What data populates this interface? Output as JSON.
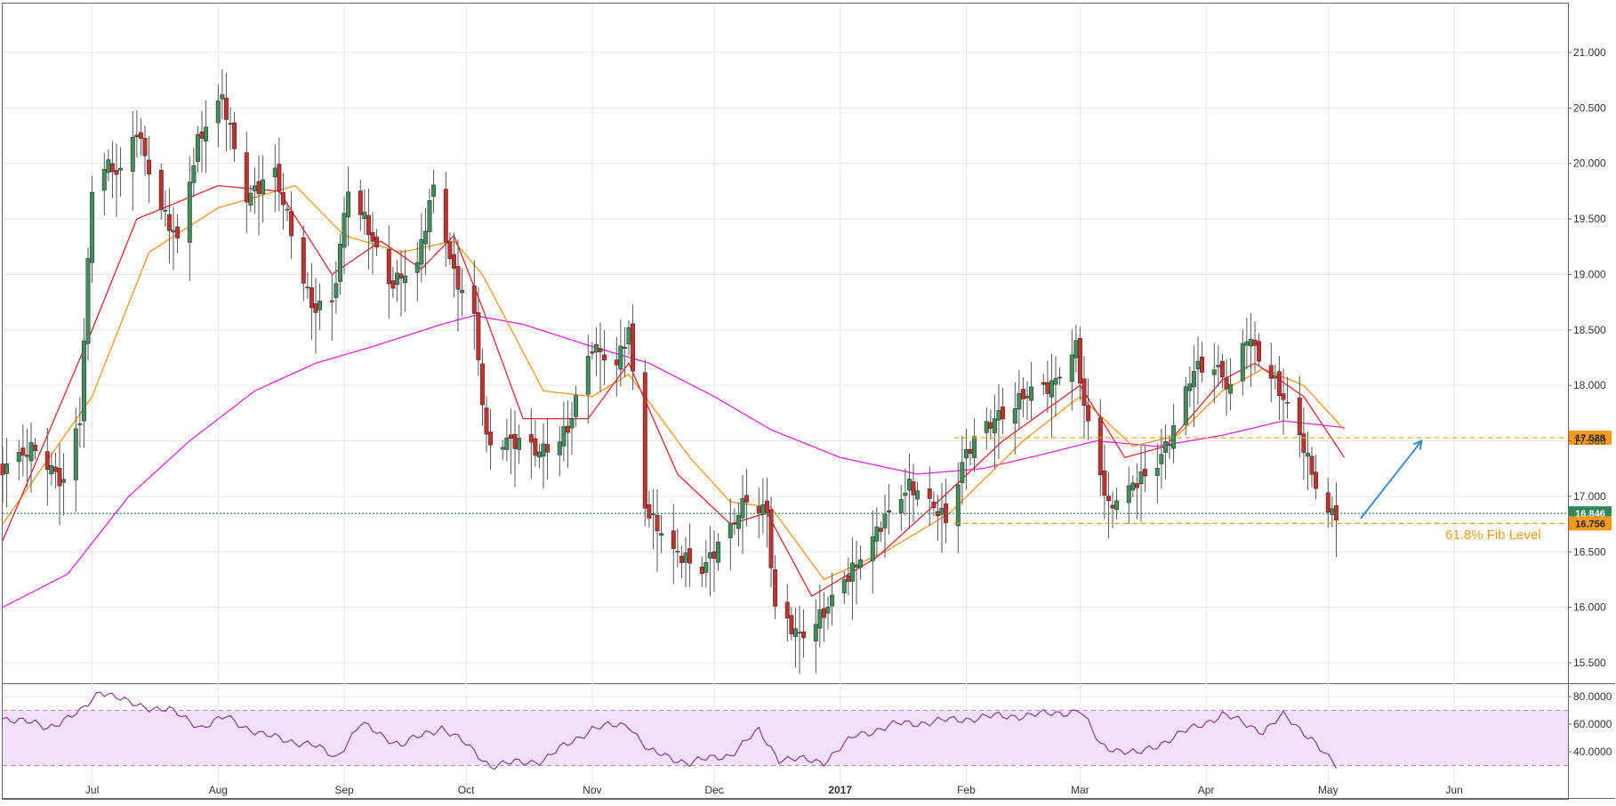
{
  "chart_data": [
    {
      "type": "candlestick",
      "title": "",
      "y_axis_side": "right",
      "ylim": [
        15.2,
        21.5
      ],
      "y_ticks": [
        "21.000",
        "20.500",
        "20.000",
        "19.500",
        "19.000",
        "18.500",
        "18.000",
        "17.500",
        "17.000",
        "16.500",
        "16.000",
        "15.500"
      ],
      "y_tick_values": [
        21.0,
        20.5,
        20.0,
        19.5,
        19.0,
        18.5,
        18.0,
        17.5,
        17.0,
        16.5,
        16.0,
        15.5
      ],
      "x_range": [
        "2016-06-09",
        "2017-06-29"
      ],
      "x_ticks": [
        {
          "label": "Jul",
          "date": "2016-07-01",
          "bold": false
        },
        {
          "label": "Aug",
          "date": "2016-08-01",
          "bold": false
        },
        {
          "label": "Sep",
          "date": "2016-09-01",
          "bold": false
        },
        {
          "label": "Oct",
          "date": "2016-10-01",
          "bold": false
        },
        {
          "label": "Nov",
          "date": "2016-11-01",
          "bold": false
        },
        {
          "label": "Dec",
          "date": "2016-12-01",
          "bold": false
        },
        {
          "label": "2017",
          "date": "2017-01-01",
          "bold": true
        },
        {
          "label": "Feb",
          "date": "2017-02-01",
          "bold": false
        },
        {
          "label": "Mar",
          "date": "2017-03-01",
          "bold": false
        },
        {
          "label": "Apr",
          "date": "2017-04-01",
          "bold": false
        },
        {
          "label": "May",
          "date": "2017-05-01",
          "bold": false
        },
        {
          "label": "Jun",
          "date": "2017-06-01",
          "bold": false
        }
      ],
      "grid": true,
      "price_anchors": [
        [
          "2016-06-09",
          17.25
        ],
        [
          "2016-06-17",
          17.45
        ],
        [
          "2016-06-24",
          17.1
        ],
        [
          "2016-06-28",
          17.7
        ],
        [
          "2016-07-01",
          19.8
        ],
        [
          "2016-07-04",
          20.0
        ],
        [
          "2016-07-08",
          19.9
        ],
        [
          "2016-07-12",
          20.3
        ],
        [
          "2016-07-18",
          19.6
        ],
        [
          "2016-07-22",
          19.3
        ],
        [
          "2016-07-27",
          20.2
        ],
        [
          "2016-08-02",
          20.6
        ],
        [
          "2016-08-08",
          19.7
        ],
        [
          "2016-08-15",
          19.9
        ],
        [
          "2016-08-19",
          19.4
        ],
        [
          "2016-08-24",
          18.7
        ],
        [
          "2016-08-29",
          18.7
        ],
        [
          "2016-09-02",
          19.8
        ],
        [
          "2016-09-06",
          19.5
        ],
        [
          "2016-09-12",
          18.9
        ],
        [
          "2016-09-19",
          19.1
        ],
        [
          "2016-09-23",
          19.8
        ],
        [
          "2016-09-28",
          19.0
        ],
        [
          "2016-10-03",
          18.6
        ],
        [
          "2016-10-06",
          17.5
        ],
        [
          "2016-10-12",
          17.5
        ],
        [
          "2016-10-19",
          17.4
        ],
        [
          "2016-10-26",
          17.6
        ],
        [
          "2016-11-01",
          18.35
        ],
        [
          "2016-11-07",
          18.2
        ],
        [
          "2016-11-10",
          18.5
        ],
        [
          "2016-11-14",
          16.9
        ],
        [
          "2016-11-21",
          16.5
        ],
        [
          "2016-11-28",
          16.35
        ],
        [
          "2016-12-05",
          16.7
        ],
        [
          "2016-12-09",
          17.0
        ],
        [
          "2016-12-14",
          16.85
        ],
        [
          "2016-12-16",
          15.95
        ],
        [
          "2016-12-22",
          15.75
        ],
        [
          "2016-12-28",
          15.95
        ],
        [
          "2017-01-05",
          16.4
        ],
        [
          "2017-01-12",
          16.8
        ],
        [
          "2017-01-18",
          17.1
        ],
        [
          "2017-01-27",
          16.8
        ],
        [
          "2017-02-01",
          17.4
        ],
        [
          "2017-02-08",
          17.7
        ],
        [
          "2017-02-15",
          17.9
        ],
        [
          "2017-02-22",
          18.0
        ],
        [
          "2017-02-28",
          18.35
        ],
        [
          "2017-03-02",
          17.8
        ],
        [
          "2017-03-08",
          16.9
        ],
        [
          "2017-03-14",
          17.1
        ],
        [
          "2017-03-20",
          17.3
        ],
        [
          "2017-03-24",
          17.6
        ],
        [
          "2017-03-29",
          18.15
        ],
        [
          "2017-04-03",
          18.2
        ],
        [
          "2017-04-07",
          17.95
        ],
        [
          "2017-04-11",
          18.45
        ],
        [
          "2017-04-17",
          18.1
        ],
        [
          "2017-04-21",
          17.8
        ],
        [
          "2017-04-25",
          17.45
        ],
        [
          "2017-04-28",
          17.1
        ],
        [
          "2017-05-01",
          16.85
        ],
        [
          "2017-05-03",
          16.846
        ]
      ],
      "ema_fast": {
        "color": "#e8242e",
        "anchors": [
          [
            "2016-06-09",
            16.6
          ],
          [
            "2016-07-01",
            18.5
          ],
          [
            "2016-07-12",
            19.5
          ],
          [
            "2016-08-01",
            19.8
          ],
          [
            "2016-08-16",
            19.75
          ],
          [
            "2016-08-29",
            19.0
          ],
          [
            "2016-09-10",
            19.3
          ],
          [
            "2016-09-20",
            19.05
          ],
          [
            "2016-09-28",
            19.35
          ],
          [
            "2016-10-05",
            18.7
          ],
          [
            "2016-10-15",
            17.7
          ],
          [
            "2016-10-31",
            17.7
          ],
          [
            "2016-11-10",
            18.2
          ],
          [
            "2016-11-22",
            17.2
          ],
          [
            "2016-12-05",
            16.75
          ],
          [
            "2016-12-14",
            16.85
          ],
          [
            "2016-12-25",
            16.1
          ],
          [
            "2017-01-10",
            16.45
          ],
          [
            "2017-01-25",
            16.95
          ],
          [
            "2017-02-10",
            17.5
          ],
          [
            "2017-03-01",
            18.0
          ],
          [
            "2017-03-12",
            17.35
          ],
          [
            "2017-03-22",
            17.45
          ],
          [
            "2017-04-05",
            18.05
          ],
          [
            "2017-04-13",
            18.2
          ],
          [
            "2017-04-25",
            17.9
          ],
          [
            "2017-05-05",
            17.35
          ]
        ]
      },
      "ema_mid": {
        "color": "#f7941d",
        "anchors": [
          [
            "2016-06-09",
            16.75
          ],
          [
            "2016-07-01",
            17.9
          ],
          [
            "2016-07-15",
            19.2
          ],
          [
            "2016-08-01",
            19.6
          ],
          [
            "2016-08-20",
            19.8
          ],
          [
            "2016-09-01",
            19.35
          ],
          [
            "2016-09-15",
            19.2
          ],
          [
            "2016-09-28",
            19.3
          ],
          [
            "2016-10-05",
            19.0
          ],
          [
            "2016-10-20",
            17.95
          ],
          [
            "2016-11-01",
            17.9
          ],
          [
            "2016-11-10",
            18.1
          ],
          [
            "2016-11-25",
            17.35
          ],
          [
            "2016-12-05",
            16.95
          ],
          [
            "2016-12-15",
            16.9
          ],
          [
            "2016-12-28",
            16.25
          ],
          [
            "2017-01-12",
            16.5
          ],
          [
            "2017-01-28",
            16.85
          ],
          [
            "2017-02-15",
            17.5
          ],
          [
            "2017-03-01",
            17.9
          ],
          [
            "2017-03-14",
            17.45
          ],
          [
            "2017-03-25",
            17.55
          ],
          [
            "2017-04-05",
            17.95
          ],
          [
            "2017-04-15",
            18.15
          ],
          [
            "2017-04-25",
            18.0
          ],
          [
            "2017-05-05",
            17.6
          ]
        ]
      },
      "sma_slow": {
        "color": "#e622e6",
        "anchors": [
          [
            "2016-06-09",
            16.0
          ],
          [
            "2016-06-25",
            16.3
          ],
          [
            "2016-07-10",
            17.0
          ],
          [
            "2016-07-25",
            17.5
          ],
          [
            "2016-08-10",
            17.95
          ],
          [
            "2016-08-25",
            18.2
          ],
          [
            "2016-09-08",
            18.35
          ],
          [
            "2016-09-25",
            18.55
          ],
          [
            "2016-10-03",
            18.63
          ],
          [
            "2016-10-15",
            18.55
          ],
          [
            "2016-11-01",
            18.35
          ],
          [
            "2016-11-15",
            18.2
          ],
          [
            "2016-12-01",
            17.9
          ],
          [
            "2016-12-15",
            17.6
          ],
          [
            "2017-01-01",
            17.35
          ],
          [
            "2017-01-20",
            17.2
          ],
          [
            "2017-02-05",
            17.25
          ],
          [
            "2017-02-20",
            17.38
          ],
          [
            "2017-03-05",
            17.5
          ],
          [
            "2017-03-20",
            17.45
          ],
          [
            "2017-04-05",
            17.55
          ],
          [
            "2017-04-20",
            17.68
          ],
          [
            "2017-05-05",
            17.62
          ]
        ]
      },
      "horizontal_lines": [
        {
          "value": 17.528,
          "color": "#f79a1b",
          "style": "dashed",
          "label": "17.528",
          "from_date": "2017-01-29"
        },
        {
          "value": 16.846,
          "color": "#2e8b57",
          "style": "dotted",
          "label": "16.846",
          "from_date": "2016-06-09"
        },
        {
          "value": 16.756,
          "color": "#f79a1b",
          "style": "dashed",
          "label": "16.756",
          "from_date": "2017-01-29"
        }
      ],
      "annotations": [
        {
          "text": "61.8% Fib Level",
          "color": "#f79a1b"
        }
      ],
      "arrow": {
        "color": "#3b8de0",
        "from": [
          "2017-05-09",
          16.8
        ],
        "to": [
          "2017-05-24",
          17.5
        ]
      }
    },
    {
      "type": "line",
      "name": "",
      "ylim": [
        25,
        90
      ],
      "y_ticks": [
        "80.0000",
        "60.0000",
        "40.0000"
      ],
      "y_tick_values": [
        80,
        60,
        40
      ],
      "band": {
        "from": 30,
        "to": 70,
        "color": "#f1e1f8"
      },
      "line_color": "#8b3a9c",
      "anchors": [
        [
          "2016-06-09",
          65
        ],
        [
          "2016-06-20",
          58
        ],
        [
          "2016-06-28",
          68
        ],
        [
          "2016-07-03",
          85
        ],
        [
          "2016-07-10",
          75
        ],
        [
          "2016-07-20",
          70
        ],
        [
          "2016-07-28",
          58
        ],
        [
          "2016-08-03",
          65
        ],
        [
          "2016-08-12",
          52
        ],
        [
          "2016-08-24",
          45
        ],
        [
          "2016-08-30",
          36
        ],
        [
          "2016-09-05",
          60
        ],
        [
          "2016-09-15",
          45
        ],
        [
          "2016-09-25",
          58
        ],
        [
          "2016-10-01",
          45
        ],
        [
          "2016-10-07",
          30
        ],
        [
          "2016-10-20",
          34
        ],
        [
          "2016-11-01",
          57
        ],
        [
          "2016-11-10",
          60
        ],
        [
          "2016-11-15",
          40
        ],
        [
          "2016-11-25",
          32
        ],
        [
          "2016-12-05",
          38
        ],
        [
          "2016-12-12",
          55
        ],
        [
          "2016-12-17",
          35
        ],
        [
          "2016-12-28",
          33
        ],
        [
          "2017-01-05",
          52
        ],
        [
          "2017-01-15",
          60
        ],
        [
          "2017-01-25",
          62
        ],
        [
          "2017-02-05",
          65
        ],
        [
          "2017-02-20",
          67
        ],
        [
          "2017-03-01",
          70
        ],
        [
          "2017-03-06",
          45
        ],
        [
          "2017-03-15",
          38
        ],
        [
          "2017-03-25",
          52
        ],
        [
          "2017-04-05",
          67
        ],
        [
          "2017-04-15",
          55
        ],
        [
          "2017-04-20",
          66
        ],
        [
          "2017-04-27",
          50
        ],
        [
          "2017-05-01",
          35
        ],
        [
          "2017-05-03",
          29
        ]
      ]
    }
  ]
}
